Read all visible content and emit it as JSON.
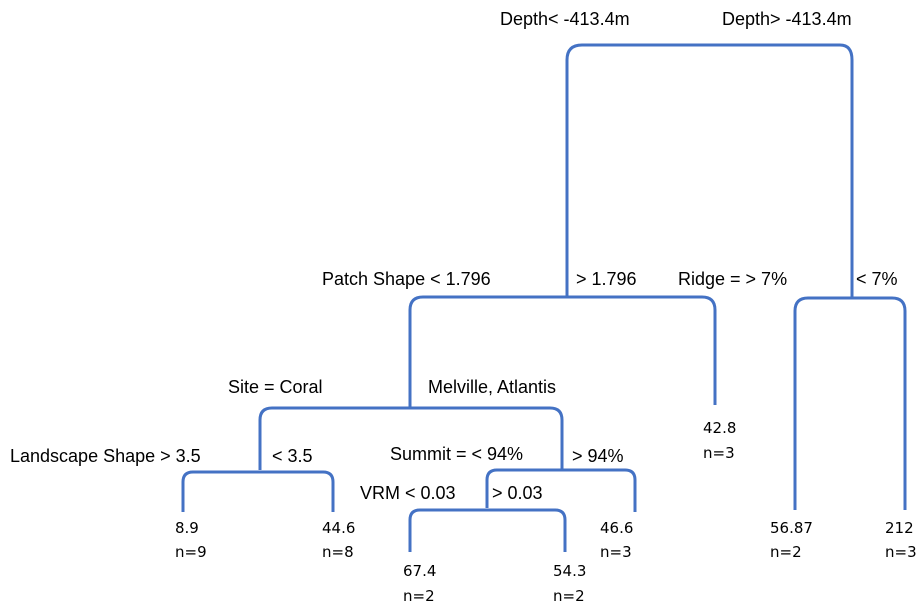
{
  "splits": [
    {
      "left": "Depth< -413.4m",
      "right": "Depth> -413.4m"
    },
    {
      "left": "Patch Shape < 1.796",
      "right": "> 1.796"
    },
    {
      "left": "Ridge = > 7%",
      "right": "< 7%"
    },
    {
      "left": "Site = Coral",
      "right": "Melville, Atlantis"
    },
    {
      "left": "Landscape Shape > 3.5",
      "right": "< 3.5"
    },
    {
      "left": "Summit = < 94%",
      "right": "> 94%"
    },
    {
      "left": "VRM < 0.03",
      "right": "> 0.03"
    }
  ],
  "leaves": [
    {
      "value": "8.9",
      "n": "n=9"
    },
    {
      "value": "44.6",
      "n": "n=8"
    },
    {
      "value": "67.4",
      "n": "n=2"
    },
    {
      "value": "54.3",
      "n": "n=2"
    },
    {
      "value": "46.6",
      "n": "n=3"
    },
    {
      "value": "42.8",
      "n": "n=3"
    },
    {
      "value": "56.87",
      "n": "n=2"
    },
    {
      "value": "212",
      "n": "n=3"
    }
  ]
}
